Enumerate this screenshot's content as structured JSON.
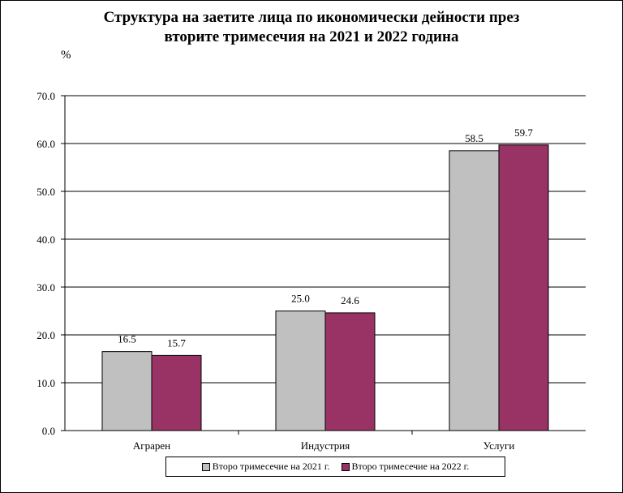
{
  "chart_data": {
    "type": "bar",
    "title_lines": [
      "Структура на заетите лица по икономически дейности през",
      "вторите тримесечия на 2021 и 2022 година"
    ],
    "ylabel": "%",
    "ylim": [
      0,
      70
    ],
    "yticks": [
      "0.0",
      "10.0",
      "20.0",
      "30.0",
      "40.0",
      "50.0",
      "60.0",
      "70.0"
    ],
    "grid": true,
    "legend_position": "bottom",
    "categories": [
      "Аграрен",
      "Индустрия",
      "Услуги"
    ],
    "series": [
      {
        "name": "Второ тримесечие на 2021 г.",
        "color": "#c0c0c0",
        "values": [
          16.5,
          25.0,
          58.5
        ],
        "labels": [
          "16.5",
          "25.0",
          "58.5"
        ]
      },
      {
        "name": "Второ тримесечие на 2022 г.",
        "color": "#993366",
        "values": [
          15.7,
          24.6,
          59.7
        ],
        "labels": [
          "15.7",
          "24.6",
          "59.7"
        ]
      }
    ]
  }
}
